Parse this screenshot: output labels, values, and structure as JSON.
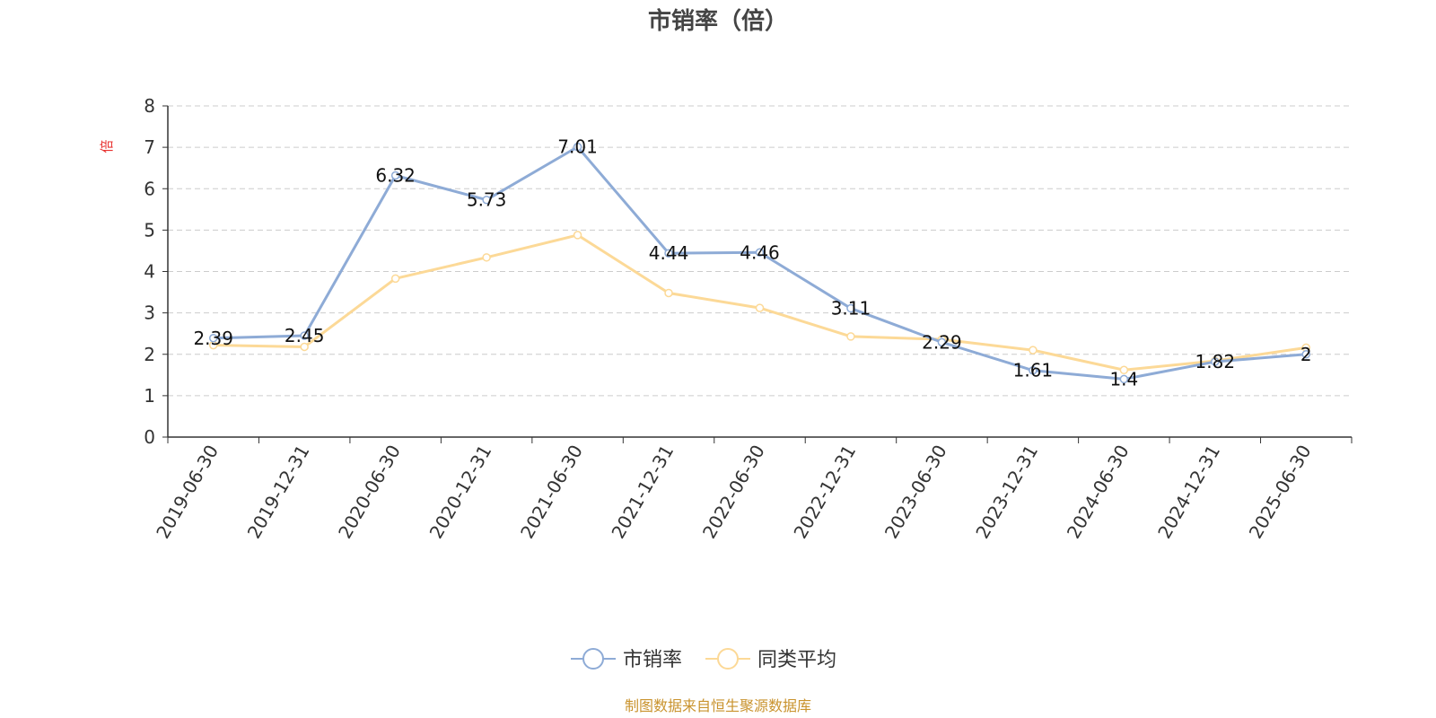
{
  "chart_data": {
    "type": "line",
    "title": "市销率（倍）",
    "ylabel": "倍",
    "xlabel": "",
    "ylim": [
      0,
      8
    ],
    "yticks": [
      0,
      1,
      2,
      3,
      4,
      5,
      6,
      7,
      8
    ],
    "grid": true,
    "legend_position": "bottom-center",
    "categories": [
      "2019-06-30",
      "2019-12-31",
      "2020-06-30",
      "2020-12-31",
      "2021-06-30",
      "2021-12-31",
      "2022-06-30",
      "2022-12-31",
      "2023-06-30",
      "2023-12-31",
      "2024-06-30",
      "2024-12-31",
      "2025-06-30"
    ],
    "series": [
      {
        "name": "市销率",
        "color": "#8eabd6",
        "values": [
          2.39,
          2.45,
          6.32,
          5.73,
          7.01,
          4.44,
          4.46,
          3.11,
          2.29,
          1.61,
          1.4,
          1.82,
          2
        ],
        "labels": [
          "2.39",
          "2.45",
          "6.32",
          "5.73",
          "7.01",
          "4.44",
          "4.46",
          "3.11",
          "2.29",
          "1.61",
          "1.4",
          "1.82",
          "2"
        ]
      },
      {
        "name": "同类平均",
        "color": "#fcd997",
        "values": [
          2.22,
          2.18,
          3.83,
          4.34,
          4.88,
          3.48,
          3.12,
          2.43,
          2.36,
          2.1,
          1.62,
          1.84,
          2.16
        ]
      }
    ],
    "source": "制图数据来自恒生聚源数据库"
  }
}
